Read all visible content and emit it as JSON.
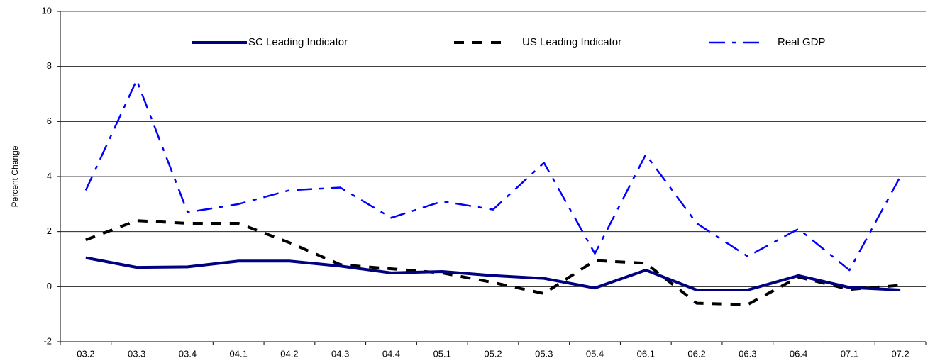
{
  "chart_data": {
    "type": "line",
    "y_label": "Percent Change",
    "categories": [
      "03.2",
      "03.3",
      "03.4",
      "04.1",
      "04.2",
      "04.3",
      "04.4",
      "05.1",
      "05.2",
      "05.3",
      "05.4",
      "06.1",
      "06.2",
      "06.3",
      "06.4",
      "07.1",
      "07.2"
    ],
    "series": [
      {
        "name": "SC Leading Indicator",
        "color": "#000080",
        "dash": "solid",
        "values": [
          1.05,
          0.7,
          0.72,
          0.93,
          0.93,
          0.75,
          0.5,
          0.55,
          0.4,
          0.3,
          -0.05,
          0.6,
          -0.12,
          -0.12,
          0.4,
          -0.03,
          -0.12
        ]
      },
      {
        "name": "US Leading Indicator",
        "color": "#000000",
        "dash": "dash",
        "values": [
          1.7,
          2.4,
          2.3,
          2.3,
          1.6,
          0.8,
          0.65,
          0.5,
          0.15,
          -0.25,
          0.95,
          0.85,
          -0.6,
          -0.65,
          0.35,
          -0.1,
          0.05
        ]
      },
      {
        "name": "Real GDP",
        "color": "#0000ff",
        "dash": "dashdot",
        "values": [
          3.5,
          7.5,
          2.7,
          3.0,
          3.5,
          3.6,
          2.5,
          3.1,
          2.8,
          4.5,
          1.2,
          4.8,
          2.3,
          1.1,
          2.1,
          0.6,
          4.0
        ]
      }
    ],
    "ylim": [
      -2,
      10
    ],
    "yticks": [
      -2,
      0,
      2,
      4,
      6,
      8,
      10
    ],
    "grid": true,
    "legend": "top"
  }
}
